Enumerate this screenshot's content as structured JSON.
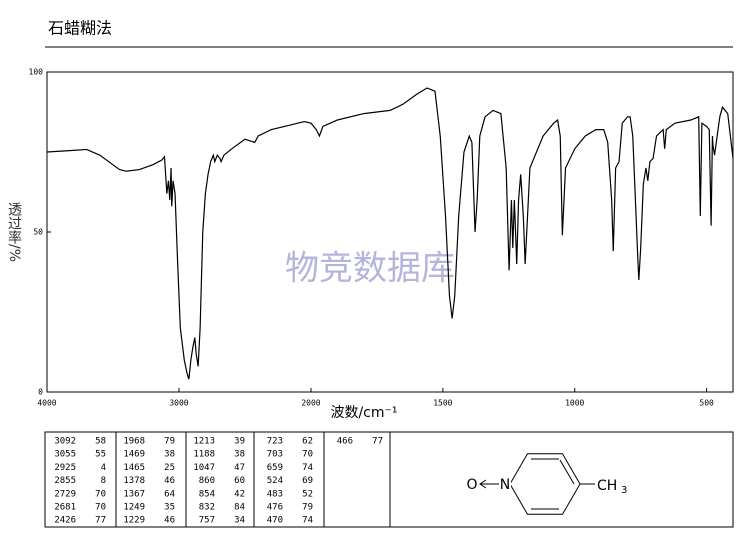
{
  "chart_data": {
    "type": "line",
    "title": "石蜡糊法",
    "watermark": "物竞数据库",
    "xlabel": "波数/cm⁻¹",
    "ylabel": "透过率/%",
    "xlim": [
      4000,
      400
    ],
    "xscale_break": 2000,
    "xticks": [
      4000,
      3000,
      2000,
      1500,
      1000,
      500
    ],
    "ylim": [
      0,
      100
    ],
    "yticks": [
      0,
      50,
      100
    ],
    "color": "#000000",
    "x": [
      4000,
      3800,
      3700,
      3600,
      3500,
      3450,
      3400,
      3300,
      3200,
      3130,
      3110,
      3092,
      3080,
      3070,
      3060,
      3055,
      3045,
      3030,
      3010,
      2990,
      2960,
      2940,
      2925,
      2910,
      2895,
      2880,
      2870,
      2855,
      2840,
      2820,
      2800,
      2780,
      2760,
      2740,
      2729,
      2710,
      2690,
      2681,
      2660,
      2600,
      2500,
      2426,
      2400,
      2300,
      2200,
      2100,
      2050,
      2000,
      1980,
      1968,
      1955,
      1900,
      1800,
      1700,
      1650,
      1600,
      1560,
      1530,
      1510,
      1490,
      1475,
      1465,
      1455,
      1440,
      1420,
      1400,
      1390,
      1378,
      1370,
      1360,
      1340,
      1310,
      1280,
      1260,
      1249,
      1240,
      1235,
      1229,
      1220,
      1213,
      1205,
      1195,
      1188,
      1170,
      1120,
      1080,
      1065,
      1055,
      1047,
      1035,
      1000,
      960,
      920,
      890,
      875,
      860,
      854,
      845,
      832,
      820,
      800,
      790,
      780,
      770,
      760,
      757,
      750,
      740,
      730,
      723,
      715,
      703,
      690,
      665,
      659,
      653,
      620,
      560,
      530,
      524,
      518,
      500,
      490,
      483,
      478,
      476,
      470,
      460,
      450,
      440,
      420,
      400
    ],
    "values": [
      75,
      75.5,
      75.8,
      74,
      71,
      69.5,
      69,
      69.5,
      71,
      72.5,
      73.5,
      62,
      66,
      60,
      70,
      58,
      66,
      62,
      40,
      20,
      10,
      6,
      4,
      10,
      14,
      17,
      12,
      8,
      20,
      50,
      62,
      68,
      72,
      74,
      72,
      74,
      73,
      72,
      74,
      76,
      79,
      78,
      80,
      82,
      83,
      84,
      84.5,
      84,
      82,
      80,
      83,
      85,
      87,
      88,
      90,
      93,
      95,
      94,
      80,
      55,
      30,
      23,
      30,
      55,
      75,
      80,
      78,
      50,
      60,
      80,
      86,
      88,
      87,
      70,
      38,
      60,
      45,
      60,
      40,
      60,
      68,
      55,
      40,
      70,
      80,
      84,
      85,
      80,
      49,
      70,
      76,
      80,
      82,
      82,
      78,
      60,
      44,
      70,
      72,
      84,
      86,
      86,
      80,
      60,
      40,
      35,
      45,
      65,
      70,
      66,
      72,
      73,
      80,
      82,
      76,
      82,
      84,
      85,
      86,
      55,
      84,
      83,
      82,
      52,
      80,
      77,
      74,
      80,
      86,
      89,
      87,
      73
    ]
  },
  "peak_table": {
    "columns": [
      [
        [
          3092,
          58
        ],
        [
          3055,
          55
        ],
        [
          2925,
          4
        ],
        [
          2855,
          8
        ],
        [
          2729,
          70
        ],
        [
          2681,
          70
        ],
        [
          2426,
          77
        ]
      ],
      [
        [
          1968,
          79
        ],
        [
          1469,
          38
        ],
        [
          1465,
          25
        ],
        [
          1378,
          46
        ],
        [
          1367,
          64
        ],
        [
          1249,
          35
        ],
        [
          1229,
          46
        ]
      ],
      [
        [
          1213,
          39
        ],
        [
          1188,
          38
        ],
        [
          1047,
          47
        ],
        [
          860,
          60
        ],
        [
          854,
          42
        ],
        [
          832,
          84
        ],
        [
          757,
          34
        ]
      ],
      [
        [
          723,
          62
        ],
        [
          703,
          70
        ],
        [
          659,
          74
        ],
        [
          524,
          69
        ],
        [
          483,
          52
        ],
        [
          476,
          79
        ],
        [
          470,
          74
        ]
      ],
      [
        [
          466,
          77
        ]
      ]
    ]
  },
  "structure": {
    "oxygen": "O",
    "nitrogen": "N",
    "methyl": "CH",
    "methyl_sub": "3"
  }
}
